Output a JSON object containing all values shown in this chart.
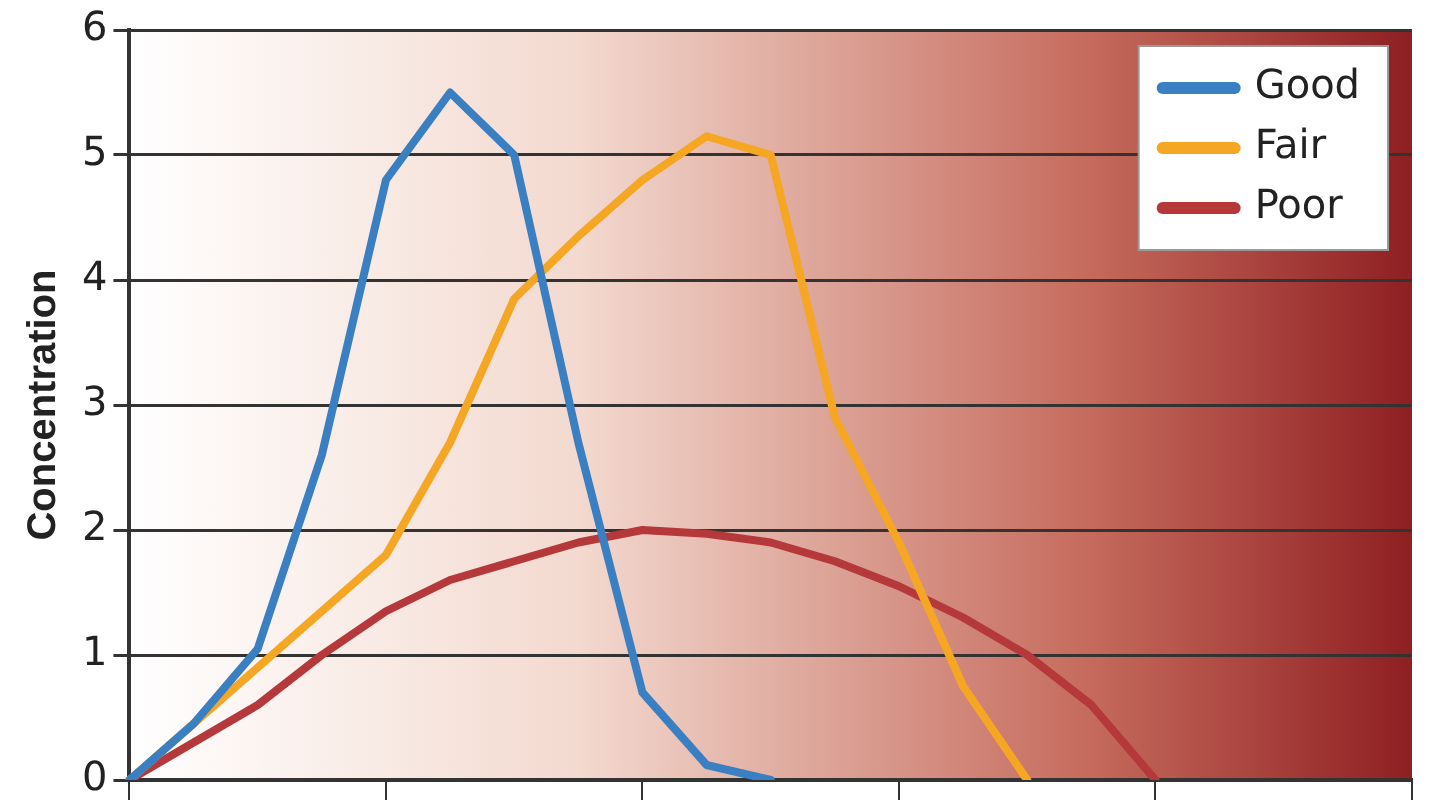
{
  "chart_data": {
    "type": "line",
    "ylabel": "Concentration",
    "categories": [
      null,
      null,
      null,
      null,
      null,
      null,
      null,
      null,
      null,
      null,
      null,
      null,
      null,
      null,
      null,
      null,
      null,
      null,
      null,
      null,
      null
    ],
    "ylim": [
      0,
      6
    ],
    "yticks": [
      0,
      1,
      2,
      3,
      4,
      5,
      6
    ],
    "grid": "y",
    "legend": "top right",
    "tick_labels": "y",
    "marker": "none",
    "line_style": "solid",
    "series": [
      {
        "name": "Good",
        "color": "#3a7fc1",
        "values": [
          0,
          0.45,
          1.05,
          2.6,
          4.8,
          5.5,
          5.0,
          2.7,
          0.7,
          0.12,
          0,
          null,
          null,
          null,
          null,
          null,
          null,
          null,
          null,
          null,
          null
        ]
      },
      {
        "name": "Fair",
        "color": "#f5a623",
        "values": [
          0,
          0.45,
          0.9,
          1.35,
          1.8,
          2.7,
          3.85,
          4.35,
          4.8,
          5.15,
          5.0,
          2.9,
          1.9,
          0.75,
          0,
          null,
          null,
          null,
          null,
          null,
          null
        ]
      },
      {
        "name": "Poor",
        "color": "#b5383a",
        "values": [
          0,
          0.3,
          0.6,
          1.0,
          1.35,
          1.6,
          1.75,
          1.9,
          2.0,
          1.97,
          1.9,
          1.75,
          1.55,
          1.3,
          1.0,
          0.6,
          0,
          null,
          null,
          null,
          null
        ]
      }
    ]
  }
}
